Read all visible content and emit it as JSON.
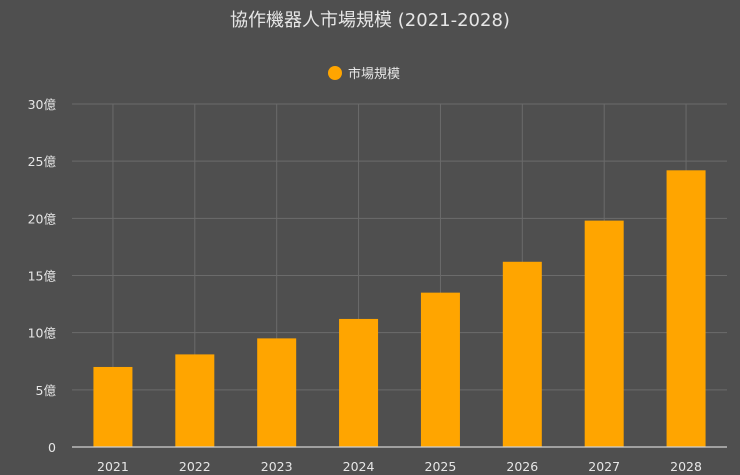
{
  "chart_data": {
    "type": "bar",
    "title": "協作機器人市場規模 (2021-2028)",
    "legend": {
      "label": "市場規模",
      "position": "top-center"
    },
    "categories": [
      "2021",
      "2022",
      "2023",
      "2024",
      "2025",
      "2026",
      "2027",
      "2028"
    ],
    "series": [
      {
        "name": "市場規模",
        "values": [
          7.0,
          8.1,
          9.5,
          11.2,
          13.5,
          16.2,
          19.8,
          24.2
        ]
      }
    ],
    "ylim": [
      0,
      30
    ],
    "ytick_values": [
      0,
      5,
      10,
      15,
      20,
      25,
      30
    ],
    "ytick_labels": [
      "0",
      "5億",
      "10億",
      "15億",
      "20億",
      "25億",
      "30億"
    ],
    "xlabel": "",
    "ylabel": "",
    "grid": true,
    "colors": {
      "bar": "#FFA500",
      "background": "#4f4f4f",
      "grid": "#6b6b6b",
      "text": "#e6e6e6"
    }
  }
}
